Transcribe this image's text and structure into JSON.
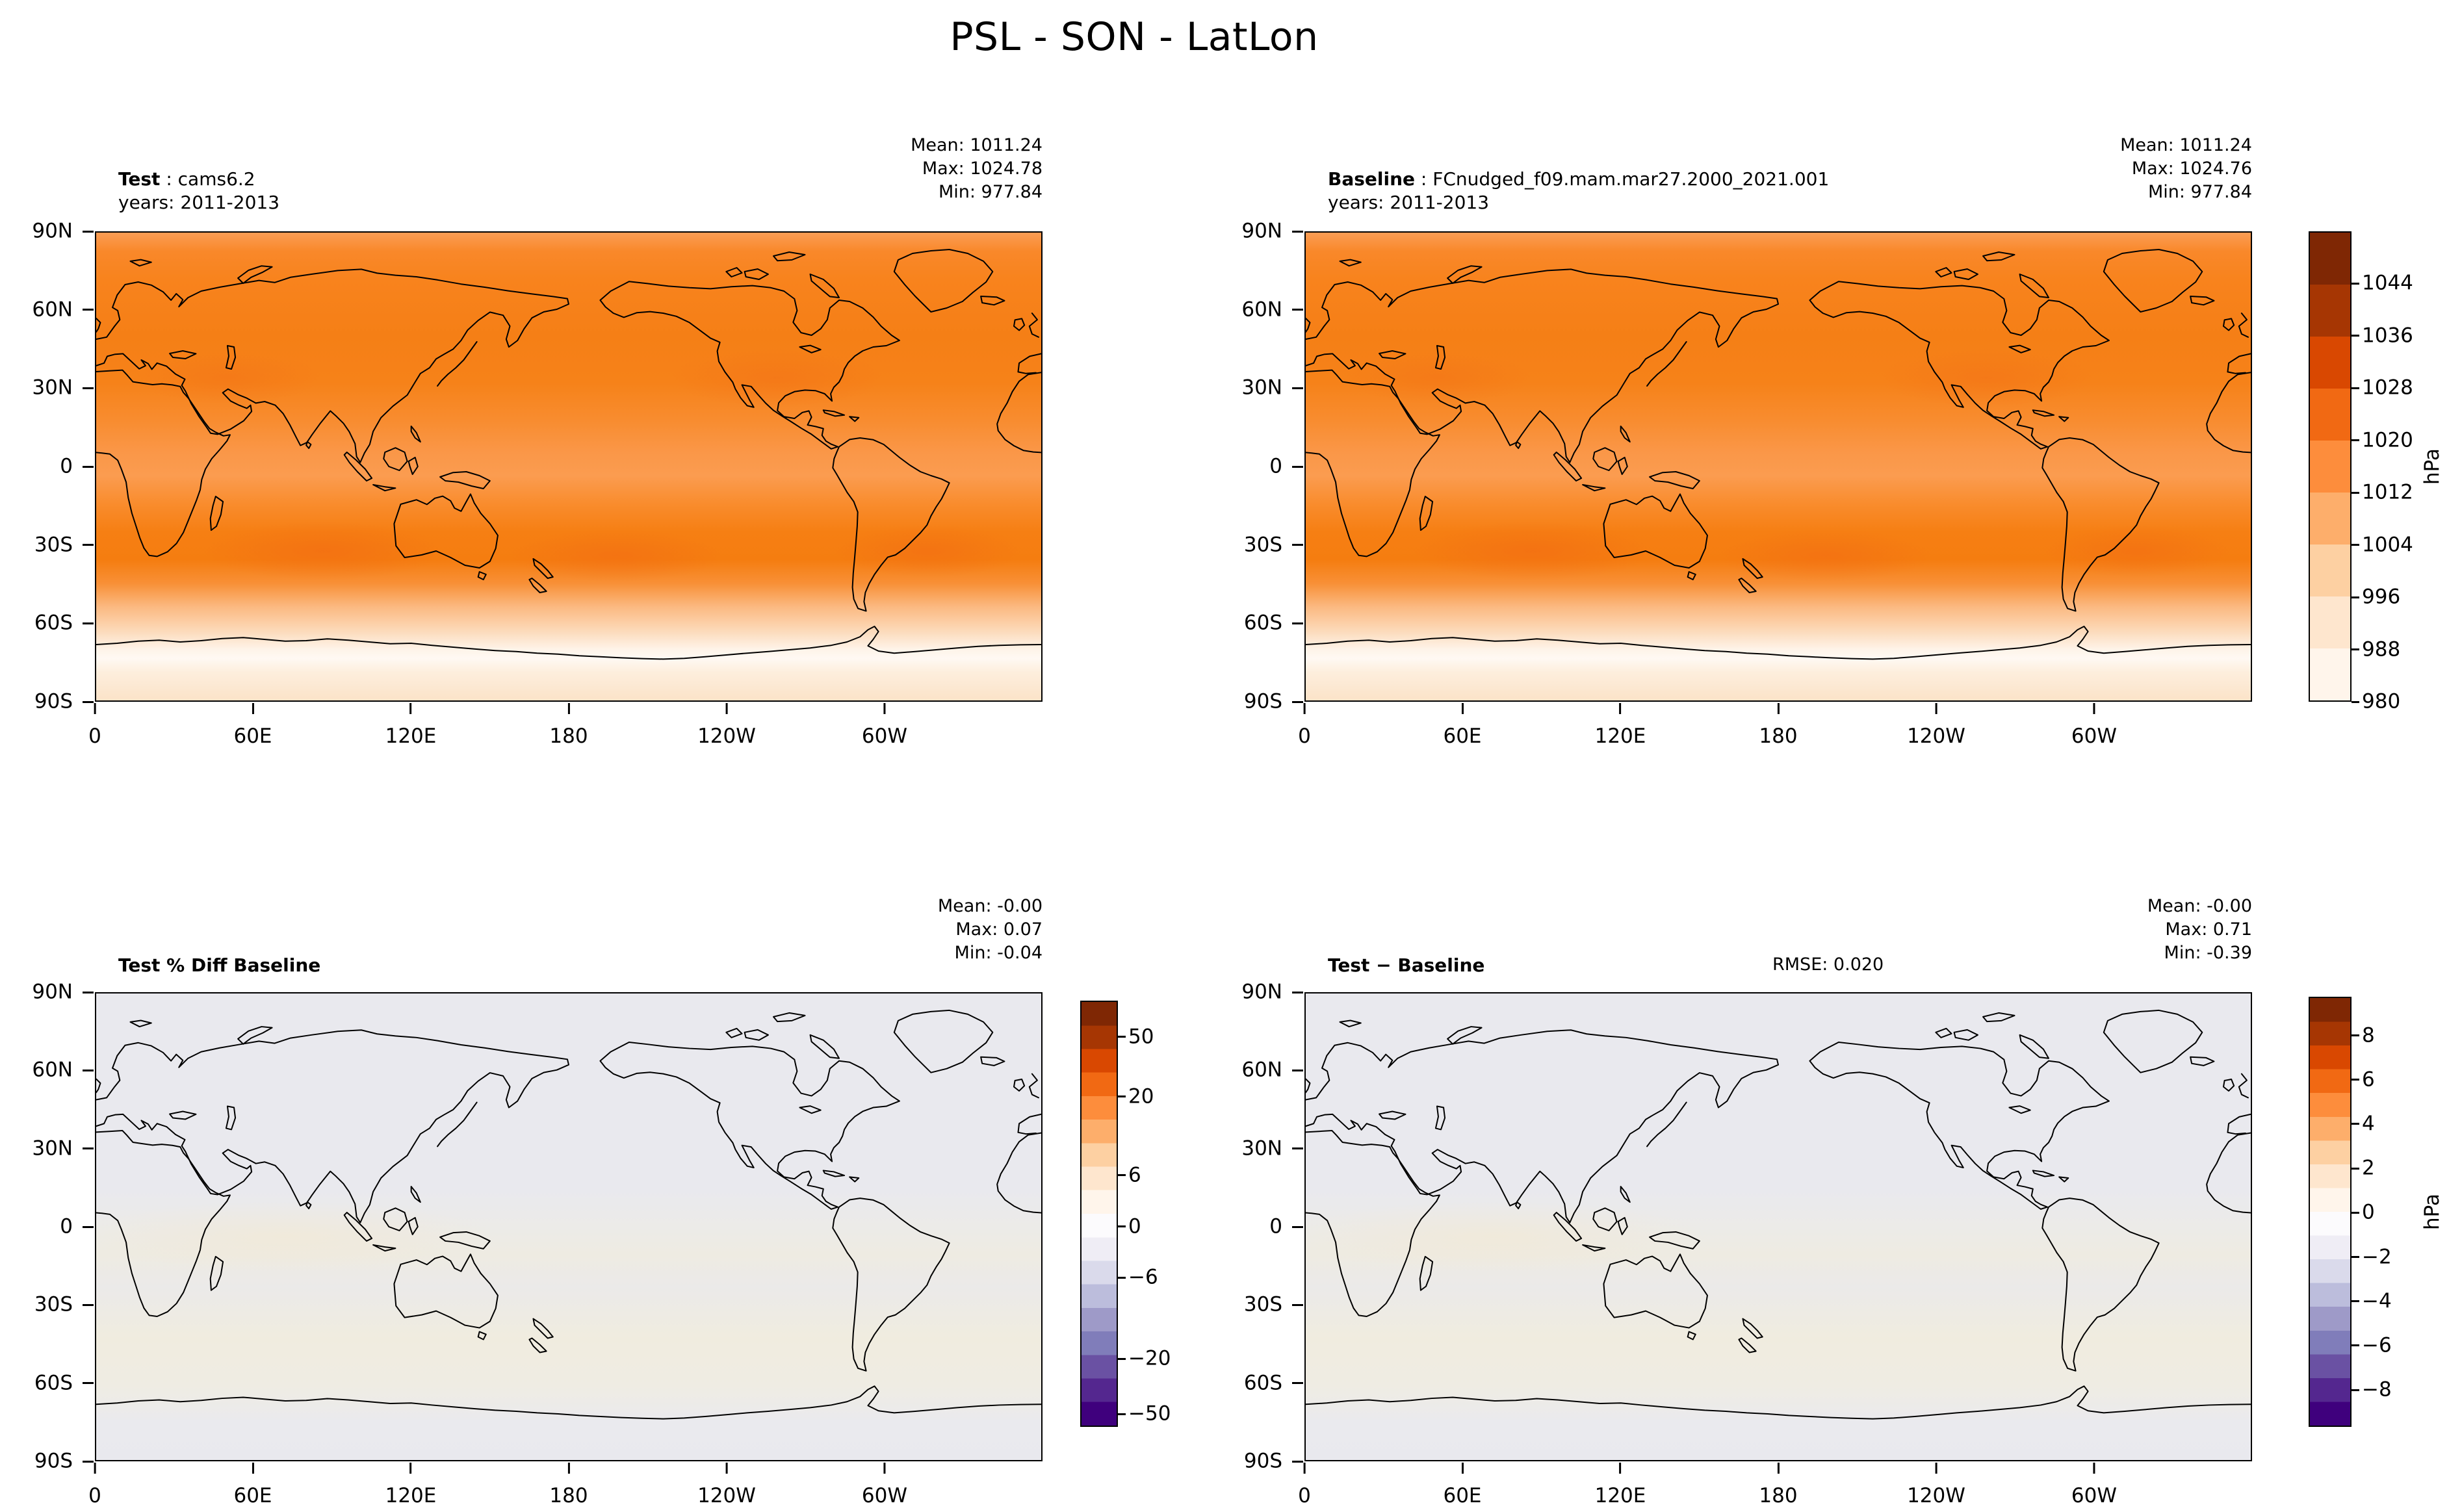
{
  "title": "PSL - SON - LatLon",
  "axes": {
    "xticks": [
      "0",
      "60E",
      "120E",
      "180",
      "120W",
      "60W"
    ],
    "yticks": [
      "90N",
      "60N",
      "30N",
      "0",
      "30S",
      "60S",
      "90S"
    ]
  },
  "panels": {
    "test": {
      "label": "Test",
      "sep": " : ",
      "name": "cams6.2",
      "years": "years: 2011-2013",
      "stats": {
        "mean": "Mean: 1011.24",
        "max": "Max: 1024.78",
        "min": "Min: 977.84"
      }
    },
    "baseline": {
      "label": "Baseline",
      "sep": " : ",
      "name": "FCnudged_f09.mam.mar27.2000_2021.001",
      "years": "years: 2011-2013",
      "stats": {
        "mean": "Mean: 1011.24",
        "max": "Max: 1024.76",
        "min": "Min: 977.84"
      }
    },
    "pct_diff": {
      "title": "Test % Diff Baseline",
      "stats": {
        "mean": "Mean: -0.00",
        "max": "Max: 0.07",
        "min": "Min: -0.04"
      }
    },
    "diff": {
      "title": "Test − Baseline",
      "rmse": "RMSE: 0.020",
      "stats": {
        "mean": "Mean: -0.00",
        "max": "Max: 0.71",
        "min": "Min: -0.39"
      }
    }
  },
  "colorbars": {
    "main": {
      "ticks": [
        "1044",
        "1036",
        "1028",
        "1020",
        "1012",
        "1004",
        "996",
        "988",
        "980"
      ],
      "unit": "hPa",
      "colormap": "Oranges",
      "colors": [
        "#fff5eb",
        "#fee6ce",
        "#fdd0a2",
        "#fdae6b",
        "#fd8d3c",
        "#f16913",
        "#d94801",
        "#a63603",
        "#7f2704"
      ]
    },
    "pct": {
      "ticks": [
        "50",
        "20",
        "6",
        "0",
        "−6",
        "−20",
        "−50"
      ],
      "colormap": "diverging orange-white-purple",
      "colors": [
        "#7f2704",
        "#d94801",
        "#fd8d3c",
        "#fdd0a2",
        "#fff5eb",
        "#fcfbfd",
        "#dadaeb",
        "#9e9ac8",
        "#6a51a3",
        "#3f007d"
      ]
    },
    "diff": {
      "ticks": [
        "8",
        "6",
        "4",
        "2",
        "0",
        "−2",
        "−4",
        "−6",
        "−8"
      ],
      "unit": "hPa",
      "colormap": "diverging orange-white-purple",
      "colors": [
        "#7f2704",
        "#d94801",
        "#fd8d3c",
        "#fdd0a2",
        "#fff5eb",
        "#fcfbfd",
        "#dadaeb",
        "#9e9ac8",
        "#6a51a3",
        "#3f007d"
      ]
    }
  },
  "chart_data": [
    {
      "type": "heatmap",
      "panel": "top-left",
      "title": "Test: cams6.2",
      "variable": "PSL",
      "season": "SON",
      "projection": "LatLon",
      "years": "2011-2013",
      "units": "hPa",
      "mean": 1011.24,
      "max": 1024.78,
      "min": 977.84,
      "levels": [
        980,
        988,
        996,
        1004,
        1012,
        1020,
        1028,
        1036,
        1044
      ],
      "colormap": "Oranges",
      "x_ticks": [
        "0",
        "60E",
        "120E",
        "180",
        "120W",
        "60W"
      ],
      "y_ticks": [
        "90N",
        "60N",
        "30N",
        "0",
        "30S",
        "60S",
        "90S"
      ],
      "x_range_deg": [
        0,
        360
      ],
      "y_range_deg": [
        -90,
        90
      ],
      "grid": false,
      "notes": "Global sea-level pressure field; subtropical high bands darkest orange near 30N and 30S, near-white circumpolar trough around 65S, light peach over Antarctica."
    },
    {
      "type": "heatmap",
      "panel": "top-right",
      "title": "Baseline: FCnudged_f09.mam.mar27.2000_2021.001",
      "variable": "PSL",
      "season": "SON",
      "projection": "LatLon",
      "years": "2011-2013",
      "units": "hPa",
      "mean": 1011.24,
      "max": 1024.76,
      "min": 977.84,
      "levels": [
        980,
        988,
        996,
        1004,
        1012,
        1020,
        1028,
        1036,
        1044
      ],
      "colormap": "Oranges",
      "x_ticks": [
        "0",
        "60E",
        "120E",
        "180",
        "120W",
        "60W"
      ],
      "y_ticks": [
        "90N",
        "60N",
        "30N",
        "0",
        "30S",
        "60S",
        "90S"
      ],
      "x_range_deg": [
        0,
        360
      ],
      "y_range_deg": [
        -90,
        90
      ],
      "grid": false,
      "notes": "Visually identical to the Test panel; shares the hPa colorbar (980-1044)."
    },
    {
      "type": "heatmap",
      "panel": "bottom-left",
      "title": "Test % Diff Baseline",
      "units": "%",
      "mean": -0.0,
      "max": 0.07,
      "min": -0.04,
      "colorbar_ticks": [
        50,
        20,
        6,
        0,
        -6,
        -20,
        -50
      ],
      "colormap": "diverging orange-white-purple (nonlinear levels)",
      "x_ticks": [
        "0",
        "60E",
        "120E",
        "180",
        "120W",
        "60W"
      ],
      "y_ticks": [
        "90N",
        "60N",
        "30N",
        "0",
        "30S",
        "60S",
        "90S"
      ],
      "x_range_deg": [
        0,
        360
      ],
      "y_range_deg": [
        -90,
        90
      ],
      "grid": false,
      "notes": "Field is near zero everywhere; map appears almost uniformly pale gray-white with faint warm tint in tropics/southern midlatitudes."
    },
    {
      "type": "heatmap",
      "panel": "bottom-right",
      "title": "Test − Baseline",
      "units": "hPa",
      "rmse": 0.02,
      "mean": -0.0,
      "max": 0.71,
      "min": -0.39,
      "colorbar_ticks": [
        8,
        6,
        4,
        2,
        0,
        -2,
        -4,
        -6,
        -8
      ],
      "colormap": "diverging orange-white-purple",
      "x_ticks": [
        "0",
        "60E",
        "120E",
        "180",
        "120W",
        "60W"
      ],
      "y_ticks": [
        "90N",
        "60N",
        "30N",
        "0",
        "30S",
        "60S",
        "90S"
      ],
      "x_range_deg": [
        0,
        360
      ],
      "y_range_deg": [
        -90,
        90
      ],
      "grid": false,
      "notes": "Difference field near zero; map appears almost uniformly pale gray-white."
    }
  ]
}
